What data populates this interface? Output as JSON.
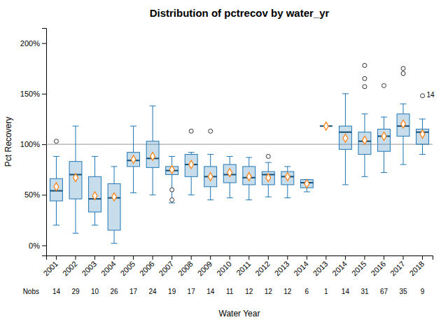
{
  "chart_data": {
    "type": "box",
    "title": "Distribution of pctrecov by water_yr",
    "xlabel": "Water Year",
    "ylabel": "Pct Recovery",
    "categories": [
      "2001",
      "2002",
      "2003",
      "2004",
      "2005",
      "2006",
      "2007",
      "2008",
      "2009",
      "2010",
      "2011",
      "2012",
      "2013",
      "2014",
      "2013",
      "2014",
      "2015",
      "2016",
      "2017",
      "2018"
    ],
    "nobs_label": "Nobs",
    "nobs": [
      14,
      29,
      10,
      26,
      17,
      24,
      19,
      17,
      14,
      11,
      12,
      12,
      12,
      6,
      1,
      14,
      31,
      67,
      35,
      9
    ],
    "boxes": [
      {
        "q1": 44,
        "med": 54,
        "q3": 66,
        "whislo": 20,
        "whishi": 88,
        "mean": 58,
        "fliers": [
          103
        ]
      },
      {
        "q1": 46,
        "med": 70,
        "q3": 83,
        "whislo": 12,
        "whishi": 118,
        "mean": 67,
        "fliers": []
      },
      {
        "q1": 33,
        "med": 46,
        "q3": 68,
        "whislo": 20,
        "whishi": 88,
        "mean": 49,
        "fliers": []
      },
      {
        "q1": 15,
        "med": 47,
        "q3": 61,
        "whislo": 2,
        "whishi": 78,
        "mean": 48,
        "fliers": []
      },
      {
        "q1": 78,
        "med": 84,
        "q3": 92,
        "whislo": 52,
        "whishi": 118,
        "mean": 85,
        "fliers": []
      },
      {
        "q1": 77,
        "med": 86,
        "q3": 103,
        "whislo": 50,
        "whishi": 138,
        "mean": 88,
        "fliers": []
      },
      {
        "q1": 70,
        "med": 74,
        "q3": 78,
        "whislo": 42,
        "whishi": 88,
        "mean": 75,
        "fliers": [
          45,
          55
        ]
      },
      {
        "q1": 68,
        "med": 80,
        "q3": 90,
        "whislo": 50,
        "whishi": 92,
        "mean": 80,
        "fliers": [
          113
        ]
      },
      {
        "q1": 58,
        "med": 68,
        "q3": 78,
        "whislo": 45,
        "whishi": 90,
        "mean": 68,
        "fliers": [
          113
        ]
      },
      {
        "q1": 62,
        "med": 70,
        "q3": 80,
        "whislo": 47,
        "whishi": 88,
        "mean": 72,
        "fliers": []
      },
      {
        "q1": 60,
        "med": 67,
        "q3": 78,
        "whislo": 45,
        "whishi": 87,
        "mean": 68,
        "fliers": []
      },
      {
        "q1": 60,
        "med": 70,
        "q3": 73,
        "whislo": 48,
        "whishi": 82,
        "mean": 67,
        "fliers": [
          88
        ]
      },
      {
        "q1": 60,
        "med": 68,
        "q3": 73,
        "whislo": 47,
        "whishi": 78,
        "mean": 68,
        "fliers": []
      },
      {
        "q1": 57,
        "med": 62,
        "q3": 65,
        "whislo": 53,
        "whishi": 65,
        "mean": 61,
        "fliers": []
      },
      {
        "q1": 118,
        "med": 118,
        "q3": 118,
        "whislo": 118,
        "whishi": 118,
        "mean": 118,
        "fliers": []
      },
      {
        "q1": 95,
        "med": 112,
        "q3": 118,
        "whislo": 60,
        "whishi": 150,
        "mean": 106,
        "fliers": []
      },
      {
        "q1": 90,
        "med": 103,
        "q3": 112,
        "whislo": 68,
        "whishi": 130,
        "mean": 104,
        "fliers": [
          157,
          165,
          178
        ]
      },
      {
        "q1": 93,
        "med": 108,
        "q3": 115,
        "whislo": 72,
        "whishi": 127,
        "mean": 108,
        "fliers": [
          158
        ]
      },
      {
        "q1": 108,
        "med": 118,
        "q3": 130,
        "whislo": 80,
        "whishi": 140,
        "mean": 120,
        "fliers": [
          170,
          175
        ]
      },
      {
        "q1": 100,
        "med": 112,
        "q3": 115,
        "whislo": 90,
        "whishi": 125,
        "mean": 110,
        "fliers": [
          148
        ]
      }
    ],
    "ref_line": 100,
    "annotations": [
      {
        "text": "14",
        "x": "2018",
        "y": 148
      }
    ],
    "ylim": [
      -10,
      215
    ],
    "yticks": [
      {
        "value": 0,
        "label": "0%"
      },
      {
        "value": 50,
        "label": "50%"
      },
      {
        "value": 100,
        "label": "100%"
      },
      {
        "value": 150,
        "label": "150%"
      },
      {
        "value": 200,
        "label": "200%"
      }
    ],
    "grid": false
  }
}
